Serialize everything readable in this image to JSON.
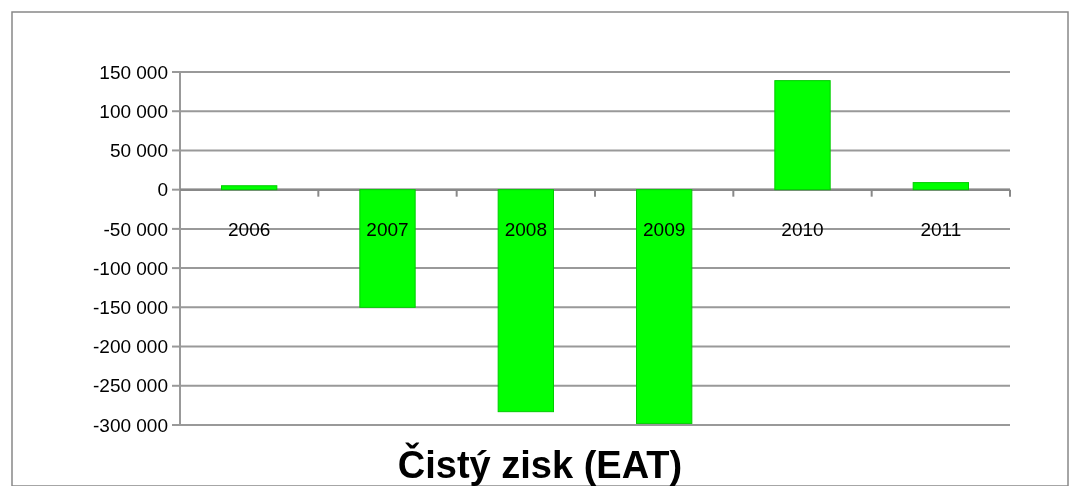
{
  "chart_data": {
    "type": "bar",
    "title": "Čistý zisk (EAT)",
    "categories": [
      "2006",
      "2007",
      "2008",
      "2009",
      "2010",
      "2011"
    ],
    "values": [
      5000,
      -150000,
      -283000,
      -298000,
      139000,
      9000
    ],
    "color": "#00ff00",
    "ylim": [
      -300000,
      150000
    ],
    "yticks": [
      {
        "value": -300000,
        "label": "-300 000"
      },
      {
        "value": -250000,
        "label": "-250 000"
      },
      {
        "value": -200000,
        "label": "-200 000"
      },
      {
        "value": -150000,
        "label": "-150 000"
      },
      {
        "value": -100000,
        "label": "-100 000"
      },
      {
        "value": -50000,
        "label": "-50 000"
      },
      0,
      {
        "value": 50000,
        "label": "50 000"
      },
      {
        "value": 100000,
        "label": "100 000"
      },
      {
        "value": 150000,
        "label": "150 000"
      }
    ],
    "grid": "y"
  }
}
